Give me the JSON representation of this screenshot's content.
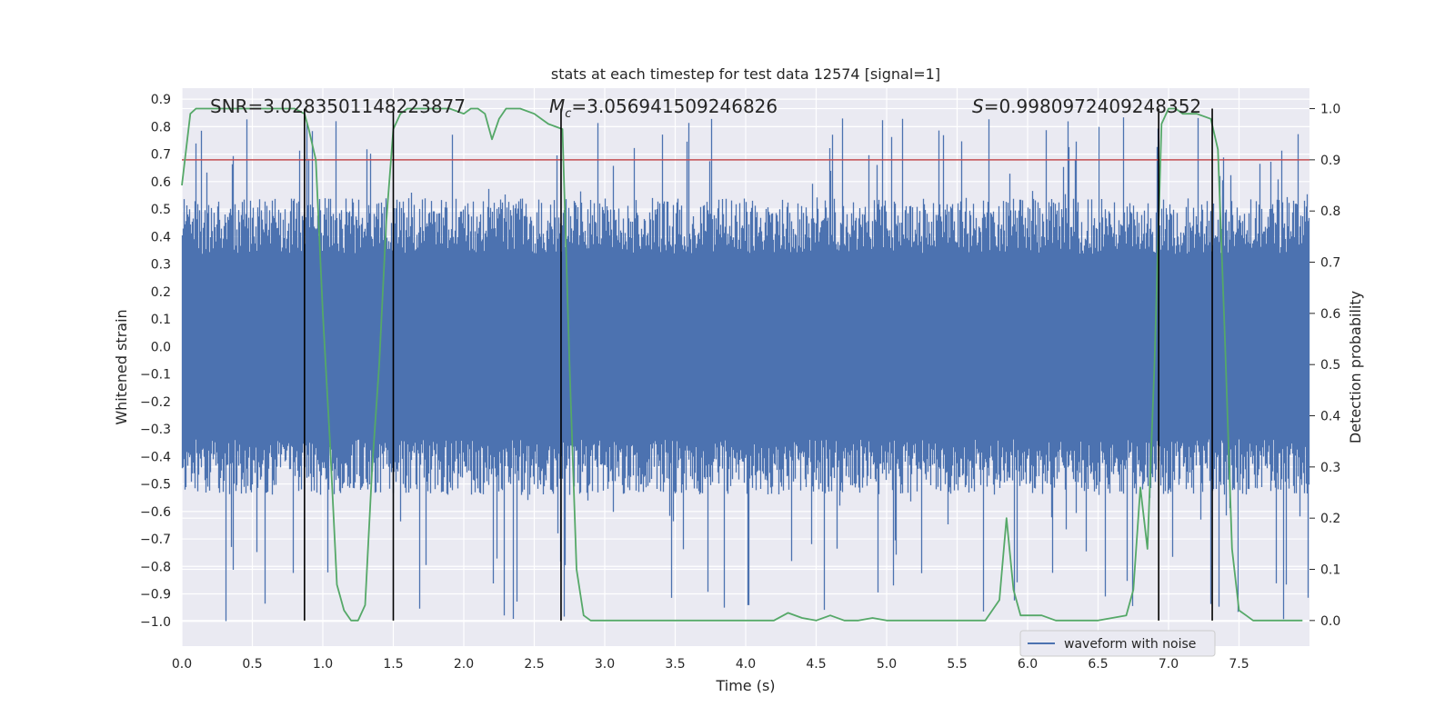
{
  "chart_data": {
    "type": "line",
    "title": "stats at each timestep for test data 12574 [signal=1]",
    "xlabel": "Time (s)",
    "ylabel": "Whitened strain",
    "ylabel_right": "Detection probability",
    "xlim": [
      0.0,
      8.0
    ],
    "ylim": [
      -1.09,
      0.94
    ],
    "ylim_right": [
      -0.05,
      1.04
    ],
    "xticks": [
      "0.0",
      "0.5",
      "1.0",
      "1.5",
      "2.0",
      "2.5",
      "3.0",
      "3.5",
      "4.0",
      "4.5",
      "5.0",
      "5.5",
      "6.0",
      "6.5",
      "7.0",
      "7.5"
    ],
    "yticks": [
      "0.9",
      "0.8",
      "0.7",
      "0.6",
      "0.5",
      "0.4",
      "0.3",
      "0.2",
      "0.1",
      "0.0",
      "−0.1",
      "−0.2",
      "−0.3",
      "−0.4",
      "−0.5",
      "−0.6",
      "−0.7",
      "−0.8",
      "−0.9",
      "−1.0"
    ],
    "yticks_right": [
      "1.0",
      "0.9",
      "0.8",
      "0.7",
      "0.6",
      "0.5",
      "0.4",
      "0.3",
      "0.2",
      "0.1",
      "0.0"
    ],
    "grid": true,
    "legend_position": "lower-right",
    "series": [
      {
        "name": "waveform with noise",
        "axis": "left",
        "color": "#4c72b0",
        "kind": "dense noisy signal",
        "typical_band": [
          -0.45,
          0.45
        ],
        "peak_range": [
          -1.0,
          0.84
        ]
      },
      {
        "axis": "right",
        "color": "#55a868",
        "x": [
          0.0,
          0.06,
          0.1,
          0.2,
          0.4,
          0.6,
          0.8,
          0.87,
          0.9,
          0.95,
          1.0,
          1.05,
          1.1,
          1.15,
          1.2,
          1.25,
          1.3,
          1.35,
          1.4,
          1.45,
          1.5,
          1.55,
          1.6,
          1.7,
          1.8,
          1.9,
          2.0,
          2.05,
          2.1,
          2.15,
          2.2,
          2.25,
          2.3,
          2.35,
          2.4,
          2.5,
          2.6,
          2.7,
          2.75,
          2.8,
          2.85,
          2.9,
          3.0,
          3.5,
          4.0,
          4.2,
          4.3,
          4.4,
          4.5,
          4.6,
          4.7,
          4.8,
          4.9,
          5.0,
          5.5,
          5.7,
          5.8,
          5.85,
          5.9,
          5.95,
          6.0,
          6.1,
          6.2,
          6.3,
          6.5,
          6.7,
          6.75,
          6.8,
          6.85,
          6.9,
          6.95,
          7.0,
          7.05,
          7.1,
          7.2,
          7.3,
          7.35,
          7.4,
          7.45,
          7.5,
          7.55,
          7.6,
          7.7,
          7.8,
          7.95
        ],
        "y": [
          0.85,
          0.99,
          1.0,
          1.0,
          1.0,
          1.0,
          1.0,
          0.99,
          0.96,
          0.9,
          0.6,
          0.35,
          0.07,
          0.02,
          0.0,
          0.0,
          0.03,
          0.3,
          0.5,
          0.78,
          0.96,
          0.99,
          1.0,
          1.0,
          1.0,
          1.0,
          0.99,
          1.0,
          1.0,
          0.99,
          0.94,
          0.98,
          1.0,
          1.0,
          1.0,
          0.99,
          0.97,
          0.96,
          0.5,
          0.1,
          0.01,
          0.0,
          0.0,
          0.0,
          0.0,
          0.0,
          0.015,
          0.005,
          0.0,
          0.01,
          0.0,
          0.0,
          0.005,
          0.0,
          0.0,
          0.0,
          0.04,
          0.2,
          0.06,
          0.01,
          0.01,
          0.01,
          0.0,
          0.0,
          0.0,
          0.01,
          0.06,
          0.26,
          0.14,
          0.5,
          0.97,
          1.0,
          1.0,
          0.99,
          0.99,
          0.98,
          0.92,
          0.55,
          0.14,
          0.02,
          0.01,
          0.0,
          0.0,
          0.0,
          0.0
        ]
      }
    ],
    "threshold": {
      "axis": "right",
      "value": 0.9,
      "color": "#c44e52"
    },
    "vertical_lines": [
      0.87,
      1.5,
      2.69,
      6.93,
      7.31
    ],
    "annotations": [
      {
        "label": "SNR",
        "text": "SNR=3.0283501148223877",
        "x": 0.2
      },
      {
        "label": "Mc",
        "prefix": "M",
        "subscript": "c",
        "text": "=3.056941509246826",
        "x": 2.6
      },
      {
        "label": "S",
        "prefix": "S",
        "text": "=0.9980972409248352",
        "x": 5.6
      }
    ]
  }
}
